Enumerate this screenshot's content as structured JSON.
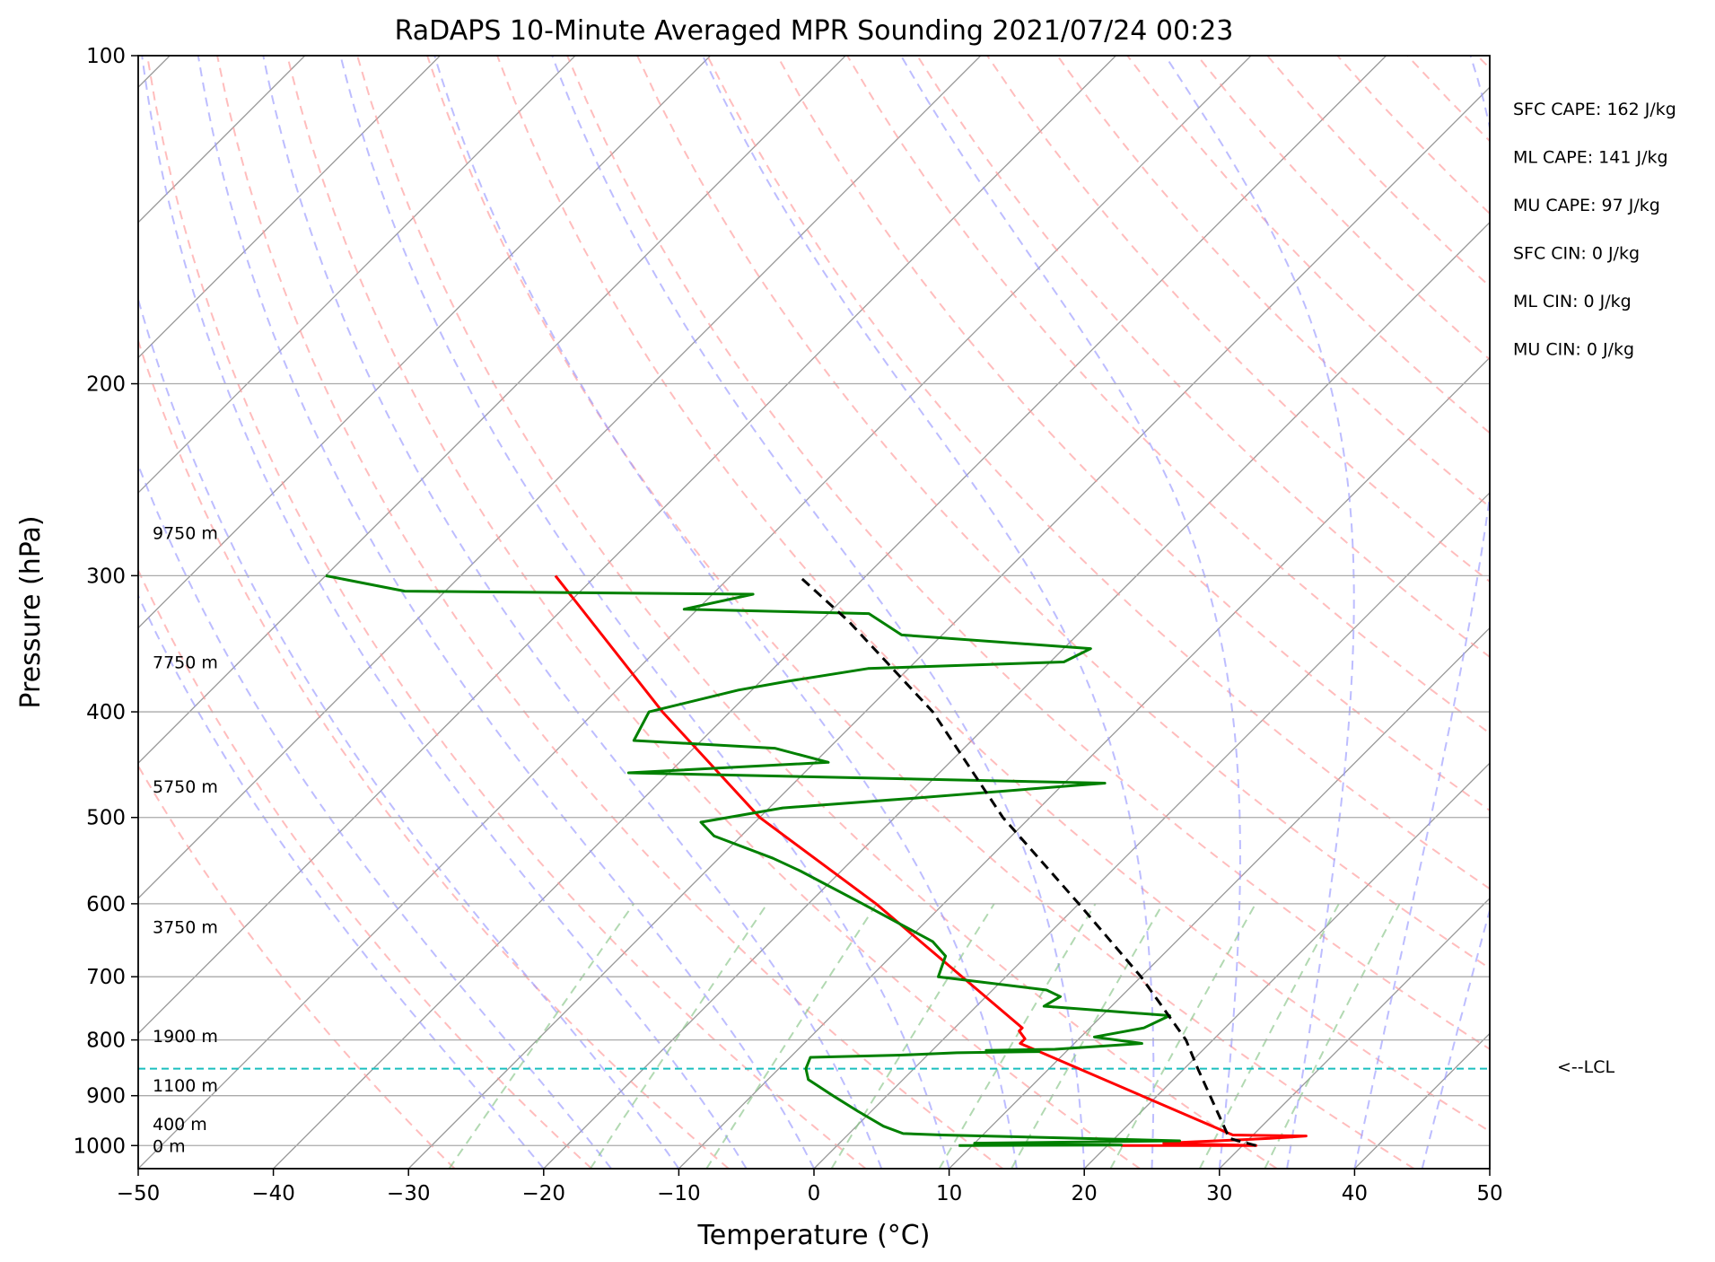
{
  "chart_data": {
    "type": "skew-t",
    "title": "RaDAPS 10-Minute Averaged MPR Sounding 2021/07/24 00:23",
    "xlabel": "Temperature (°C)",
    "ylabel": "Pressure (hPa)",
    "xlim": [
      -50,
      50
    ],
    "ylim": [
      1050,
      100
    ],
    "y_scale": "log",
    "grid": true,
    "x_ticks": [
      "−50",
      "−40",
      "−30",
      "−20",
      "−10",
      "0",
      "10",
      "20",
      "30",
      "40",
      "50"
    ],
    "y_ticks": [
      "100",
      "200",
      "300",
      "400",
      "500",
      "600",
      "700",
      "800",
      "900",
      "1000"
    ],
    "height_labels": [
      {
        "pressure": 274,
        "text": "9750 m"
      },
      {
        "pressure": 360,
        "text": "7750 m"
      },
      {
        "pressure": 468,
        "text": "5750 m"
      },
      {
        "pressure": 630,
        "text": "3750 m"
      },
      {
        "pressure": 793,
        "text": "1900 m"
      },
      {
        "pressure": 880,
        "text": "1100 m"
      },
      {
        "pressure": 955,
        "text": "400 m"
      },
      {
        "pressure": 1000,
        "text": "0 m"
      }
    ],
    "lcl": {
      "pressure": 850,
      "text": "<--LCL"
    },
    "stats": [
      "SFC CAPE: 162 J/kg",
      "ML CAPE: 141 J/kg",
      "MU CAPE: 97 J/kg",
      "SFC CIN: 0 J/kg",
      "ML CIN: 0 J/kg",
      "MU CIN: 0 J/kg"
    ],
    "series": [
      {
        "name": "Temperature",
        "color": "#ff0000",
        "points": [
          [
            1000,
            21
          ],
          [
            1000,
            31
          ],
          [
            995,
            24
          ],
          [
            985,
            31.5
          ],
          [
            980,
            34
          ],
          [
            978,
            28.5
          ],
          [
            806,
            6
          ],
          [
            798,
            6
          ],
          [
            785,
            5
          ],
          [
            780,
            5
          ],
          [
            600,
            -15
          ],
          [
            500,
            -30
          ],
          [
            400,
            -45
          ],
          [
            300,
            -63
          ]
        ]
      },
      {
        "name": "Dewpoint",
        "color": "#008000",
        "points": [
          [
            1000,
            9
          ],
          [
            999,
            21
          ],
          [
            995,
            10
          ],
          [
            990,
            25
          ],
          [
            978,
            7
          ],
          [
            975,
            4
          ],
          [
            960,
            2
          ],
          [
            930,
            -1
          ],
          [
            900,
            -4
          ],
          [
            870,
            -7
          ],
          [
            850,
            -8
          ],
          [
            830,
            -8.5
          ],
          [
            826,
            -2
          ],
          [
            822,
            2
          ],
          [
            820,
            8
          ],
          [
            818,
            4
          ],
          [
            816,
            9
          ],
          [
            806,
            15
          ],
          [
            795,
            11
          ],
          [
            780,
            14
          ],
          [
            760,
            15
          ],
          [
            745,
            5
          ],
          [
            730,
            5.5
          ],
          [
            720,
            4
          ],
          [
            700,
            -5
          ],
          [
            670,
            -6
          ],
          [
            650,
            -8
          ],
          [
            600,
            -16
          ],
          [
            560,
            -23
          ],
          [
            545,
            -26
          ],
          [
            520,
            -32
          ],
          [
            505,
            -34
          ],
          [
            490,
            -29
          ],
          [
            480,
            -20
          ],
          [
            465,
            -7
          ],
          [
            455,
            -43
          ],
          [
            445,
            -29
          ],
          [
            432,
            -34
          ],
          [
            425,
            -45
          ],
          [
            400,
            -46
          ],
          [
            382,
            -41
          ],
          [
            375,
            -38
          ],
          [
            365,
            -33
          ],
          [
            360,
            -19
          ],
          [
            350,
            -18
          ],
          [
            340,
            -33
          ],
          [
            325,
            -37
          ],
          [
            322,
            -51
          ],
          [
            312,
            -47
          ],
          [
            310,
            -73
          ],
          [
            300,
            -80
          ]
        ]
      },
      {
        "name": "Parcel",
        "color": "#000000",
        "style": "dashed",
        "points": [
          [
            1000,
            31
          ],
          [
            985,
            28.5
          ],
          [
            850,
            21
          ],
          [
            800,
            18
          ],
          [
            700,
            10
          ],
          [
            600,
            0
          ],
          [
            500,
            -12
          ],
          [
            400,
            -25
          ],
          [
            330,
            -38
          ],
          [
            300,
            -45
          ]
        ]
      }
    ]
  },
  "colors": {
    "temperature": "#ff0000",
    "dewpoint": "#008000",
    "parcel": "#000000",
    "lcl_line": "#1abfbf",
    "dry_adiabats": "#ff9999",
    "moist_adiabats": "#9999ff",
    "mixing_ratio": "#88c488",
    "isotherms": "#999999"
  }
}
